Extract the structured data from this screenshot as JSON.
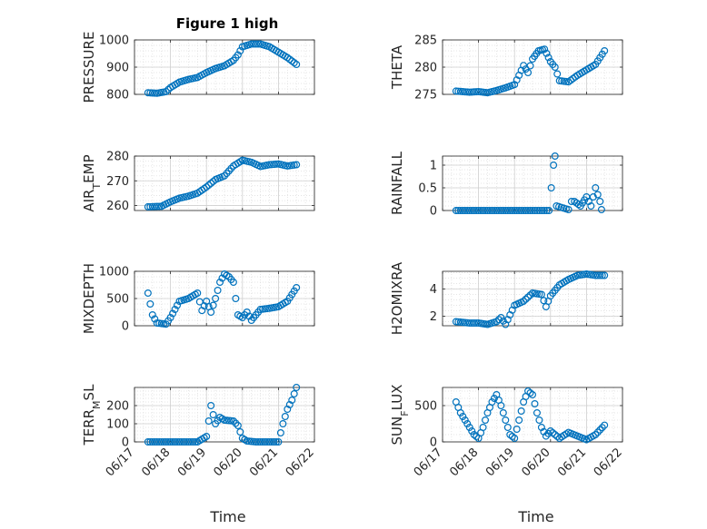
{
  "figure": {
    "title": "Figure 1 high"
  },
  "colors": {
    "marker": "#0072BD",
    "axes": "#262626",
    "grid": "#dcdcdc"
  },
  "chart_data": [
    {
      "id": "pressure",
      "type": "scatter",
      "title": "Figure 1 high",
      "ylabel": "PRESSURE",
      "ylabel_base": "PRESSURE",
      "ylabel_sub": "",
      "ylabel_tail": "",
      "ylim": [
        800,
        1000
      ],
      "yticks": [
        800,
        900,
        1000
      ],
      "ytick_labels": [
        "800",
        "900",
        "1000"
      ],
      "xlim": [
        "06/17",
        "06/22"
      ],
      "xticks": [],
      "xlabel": "",
      "grid": true,
      "points": [
        [
          "06/17 09:00",
          806
        ],
        [
          "06/17 15:00",
          804
        ],
        [
          "06/17 21:00",
          810
        ],
        [
          "06/18 00:00",
          825
        ],
        [
          "06/18 06:00",
          845
        ],
        [
          "06/18 12:00",
          855
        ],
        [
          "06/18 18:00",
          862
        ],
        [
          "06/19 00:00",
          880
        ],
        [
          "06/19 06:00",
          895
        ],
        [
          "06/19 12:00",
          905
        ],
        [
          "06/19 18:00",
          925
        ],
        [
          "06/19 21:00",
          945
        ],
        [
          "06/20 00:00",
          975
        ],
        [
          "06/20 06:00",
          985
        ],
        [
          "06/20 12:00",
          985
        ],
        [
          "06/20 18:00",
          975
        ],
        [
          "06/21 00:00",
          955
        ],
        [
          "06/21 06:00",
          935
        ],
        [
          "06/21 12:00",
          910
        ]
      ]
    },
    {
      "id": "theta",
      "type": "scatter",
      "title": "",
      "ylabel": "THETA",
      "ylabel_base": "THETA",
      "ylabel_sub": "",
      "ylabel_tail": "",
      "ylim": [
        275,
        285
      ],
      "yticks": [
        275,
        280,
        285
      ],
      "ytick_labels": [
        "275",
        "280",
        "285"
      ],
      "xlim": [
        "06/17",
        "06/22"
      ],
      "xticks": [],
      "xlabel": "",
      "grid": true,
      "points": [
        [
          "06/17 09:00",
          275.6
        ],
        [
          "06/17 18:00",
          275.4
        ],
        [
          "06/18 00:00",
          275.5
        ],
        [
          "06/18 06:00",
          275.3
        ],
        [
          "06/18 12:00",
          275.7
        ],
        [
          "06/18 18:00",
          276.2
        ],
        [
          "06/19 00:00",
          276.8
        ],
        [
          "06/19 03:00",
          278.5
        ],
        [
          "06/19 06:00",
          280.3
        ],
        [
          "06/19 09:00",
          279.0
        ],
        [
          "06/19 12:00",
          281.5
        ],
        [
          "06/19 16:00",
          283.0
        ],
        [
          "06/19 20:00",
          283.3
        ],
        [
          "06/20 00:00",
          281.0
        ],
        [
          "06/20 03:00",
          280.0
        ],
        [
          "06/20 06:00",
          277.5
        ],
        [
          "06/20 12:00",
          277.3
        ],
        [
          "06/20 18:00",
          278.5
        ],
        [
          "06/21 00:00",
          279.5
        ],
        [
          "06/21 06:00",
          280.5
        ],
        [
          "06/21 12:00",
          283.0
        ]
      ]
    },
    {
      "id": "airtemp",
      "type": "scatter",
      "title": "",
      "ylabel": "AIR_TEMP",
      "ylabel_base": "AIR",
      "ylabel_sub": "T",
      "ylabel_tail": "EMP",
      "ylim": [
        258,
        280
      ],
      "yticks": [
        260,
        270,
        280
      ],
      "ytick_labels": [
        "260",
        "270",
        "280"
      ],
      "xlim": [
        "06/17",
        "06/22"
      ],
      "xticks": [],
      "xlabel": "",
      "grid": true,
      "points": [
        [
          "06/17 09:00",
          259.5
        ],
        [
          "06/17 18:00",
          259.7
        ],
        [
          "06/18 00:00",
          261.5
        ],
        [
          "06/18 06:00",
          263
        ],
        [
          "06/18 12:00",
          263.8
        ],
        [
          "06/18 18:00",
          265
        ],
        [
          "06/19 00:00",
          267.5
        ],
        [
          "06/19 06:00",
          270.5
        ],
        [
          "06/19 12:00",
          272
        ],
        [
          "06/19 18:00",
          276
        ],
        [
          "06/20 00:00",
          278.3
        ],
        [
          "06/20 06:00",
          277.5
        ],
        [
          "06/20 12:00",
          275.8
        ],
        [
          "06/20 18:00",
          276.5
        ],
        [
          "06/21 00:00",
          276.8
        ],
        [
          "06/21 06:00",
          276
        ],
        [
          "06/21 12:00",
          276.5
        ]
      ]
    },
    {
      "id": "rainfall",
      "type": "scatter",
      "title": "",
      "ylabel": "RAINFALL",
      "ylabel_base": "RAINFALL",
      "ylabel_sub": "",
      "ylabel_tail": "",
      "ylim": [
        0,
        1.2
      ],
      "yticks": [
        0,
        0.5,
        1
      ],
      "ytick_labels": [
        "0",
        "0.5",
        "1"
      ],
      "xlim": [
        "06/17",
        "06/22"
      ],
      "xticks": [],
      "xlabel": "",
      "grid": true,
      "points": [
        [
          "06/17 09:00",
          0
        ],
        [
          "06/18 00:00",
          0
        ],
        [
          "06/18 12:00",
          0
        ],
        [
          "06/19 00:00",
          0
        ],
        [
          "06/19 12:00",
          0
        ],
        [
          "06/19 23:00",
          0
        ],
        [
          "06/20 02:00",
          1.0
        ],
        [
          "06/20 03:00",
          1.2
        ],
        [
          "06/20 04:00",
          0.1
        ],
        [
          "06/20 12:00",
          0.02
        ],
        [
          "06/20 14:00",
          0.2
        ],
        [
          "06/20 16:00",
          0.2
        ],
        [
          "06/20 20:00",
          0.1
        ],
        [
          "06/21 00:00",
          0.3
        ],
        [
          "06/21 03:00",
          0.1
        ],
        [
          "06/21 06:00",
          0.5
        ],
        [
          "06/21 09:00",
          0.2
        ],
        [
          "06/21 10:00",
          0.02
        ]
      ]
    },
    {
      "id": "mixdepth",
      "type": "scatter",
      "title": "",
      "ylabel": "MIXDEPTH",
      "ylabel_base": "MIXDEPTH",
      "ylabel_sub": "",
      "ylabel_tail": "",
      "ylim": [
        0,
        1000
      ],
      "yticks": [
        0,
        500,
        1000
      ],
      "ytick_labels": [
        "0",
        "500",
        "1000"
      ],
      "xlim": [
        "06/17",
        "06/22"
      ],
      "xticks": [],
      "xlabel": "",
      "grid": true,
      "points": [
        [
          "06/17 09:00",
          600
        ],
        [
          "06/17 12:00",
          200
        ],
        [
          "06/17 15:00",
          50
        ],
        [
          "06/17 21:00",
          30
        ],
        [
          "06/18 00:00",
          150
        ],
        [
          "06/18 03:00",
          300
        ],
        [
          "06/18 06:00",
          450
        ],
        [
          "06/18 12:00",
          500
        ],
        [
          "06/18 18:00",
          600
        ],
        [
          "06/18 21:00",
          280
        ],
        [
          "06/19 00:00",
          450
        ],
        [
          "06/19 03:00",
          250
        ],
        [
          "06/19 06:00",
          500
        ],
        [
          "06/19 09:00",
          800
        ],
        [
          "06/19 12:00",
          950
        ],
        [
          "06/19 15:00",
          900
        ],
        [
          "06/19 18:00",
          800
        ],
        [
          "06/19 21:00",
          200
        ],
        [
          "06/20 00:00",
          150
        ],
        [
          "06/20 03:00",
          250
        ],
        [
          "06/20 06:00",
          100
        ],
        [
          "06/20 12:00",
          300
        ],
        [
          "06/20 18:00",
          320
        ],
        [
          "06/21 00:00",
          350
        ],
        [
          "06/21 06:00",
          450
        ],
        [
          "06/21 12:00",
          700
        ]
      ]
    },
    {
      "id": "h2omixra",
      "type": "scatter",
      "title": "",
      "ylabel": "H2OMIXRA",
      "ylabel_base": "H2OMIXRA",
      "ylabel_sub": "",
      "ylabel_tail": "",
      "ylim": [
        1.3,
        5.3
      ],
      "yticks": [
        2,
        4
      ],
      "ytick_labels": [
        "2",
        "4"
      ],
      "xlim": [
        "06/17",
        "06/22"
      ],
      "xticks": [],
      "xlabel": "",
      "grid": true,
      "points": [
        [
          "06/17 09:00",
          1.6
        ],
        [
          "06/17 18:00",
          1.5
        ],
        [
          "06/18 00:00",
          1.5
        ],
        [
          "06/18 06:00",
          1.4
        ],
        [
          "06/18 12:00",
          1.6
        ],
        [
          "06/18 15:00",
          1.9
        ],
        [
          "06/18 18:00",
          1.4
        ],
        [
          "06/19 00:00",
          2.8
        ],
        [
          "06/19 06:00",
          3.1
        ],
        [
          "06/19 12:00",
          3.7
        ],
        [
          "06/19 18:00",
          3.6
        ],
        [
          "06/19 21:00",
          2.7
        ],
        [
          "06/20 00:00",
          3.5
        ],
        [
          "06/20 06:00",
          4.3
        ],
        [
          "06/20 12:00",
          4.7
        ],
        [
          "06/20 18:00",
          5.0
        ],
        [
          "06/21 00:00",
          5.1
        ],
        [
          "06/21 06:00",
          5.0
        ],
        [
          "06/21 12:00",
          5.0
        ]
      ]
    },
    {
      "id": "terrmsl",
      "type": "scatter",
      "title": "",
      "ylabel": "TERR_MSL",
      "ylabel_base": "TERR",
      "ylabel_sub": "M",
      "ylabel_tail": "SL",
      "ylim": [
        0,
        300
      ],
      "yticks": [
        0,
        100,
        200
      ],
      "ytick_labels": [
        "0",
        "100",
        "200"
      ],
      "xlim": [
        "06/17",
        "06/22"
      ],
      "xticks": [
        "06/17",
        "06/18",
        "06/19",
        "06/20",
        "06/21",
        "06/22"
      ],
      "xlabel": "Time",
      "grid": true,
      "points": [
        [
          "06/17 09:00",
          0
        ],
        [
          "06/17 18:00",
          0
        ],
        [
          "06/18 06:00",
          0
        ],
        [
          "06/18 18:00",
          0
        ],
        [
          "06/19 00:00",
          30
        ],
        [
          "06/19 03:00",
          200
        ],
        [
          "06/19 06:00",
          100
        ],
        [
          "06/19 09:00",
          135
        ],
        [
          "06/19 12:00",
          120
        ],
        [
          "06/19 18:00",
          115
        ],
        [
          "06/19 21:00",
          90
        ],
        [
          "06/20 00:00",
          20
        ],
        [
          "06/20 03:00",
          5
        ],
        [
          "06/20 09:00",
          0
        ],
        [
          "06/20 18:00",
          0
        ],
        [
          "06/21 00:00",
          0
        ],
        [
          "06/21 03:00",
          100
        ],
        [
          "06/21 06:00",
          180
        ],
        [
          "06/21 09:00",
          230
        ],
        [
          "06/21 12:00",
          300
        ]
      ]
    },
    {
      "id": "sunflux",
      "type": "scatter",
      "title": "",
      "ylabel": "SUN_FLUX",
      "ylabel_base": "SUN",
      "ylabel_sub": "F",
      "ylabel_tail": "LUX",
      "ylim": [
        0,
        750
      ],
      "yticks": [
        0,
        500
      ],
      "ytick_labels": [
        "0",
        "500"
      ],
      "xlim": [
        "06/17",
        "06/22"
      ],
      "xticks": [
        "06/17",
        "06/18",
        "06/19",
        "06/20",
        "06/21",
        "06/22"
      ],
      "xlabel": "Time",
      "grid": true,
      "points": [
        [
          "06/17 09:00",
          550
        ],
        [
          "06/17 12:00",
          400
        ],
        [
          "06/17 15:00",
          300
        ],
        [
          "06/17 21:00",
          100
        ],
        [
          "06/18 00:00",
          50
        ],
        [
          "06/18 03:00",
          200
        ],
        [
          "06/18 06:00",
          400
        ],
        [
          "06/18 09:00",
          550
        ],
        [
          "06/18 12:00",
          650
        ],
        [
          "06/18 15:00",
          500
        ],
        [
          "06/18 18:00",
          300
        ],
        [
          "06/18 21:00",
          100
        ],
        [
          "06/19 00:00",
          50
        ],
        [
          "06/19 03:00",
          300
        ],
        [
          "06/19 06:00",
          550
        ],
        [
          "06/19 09:00",
          700
        ],
        [
          "06/19 12:00",
          650
        ],
        [
          "06/19 15:00",
          400
        ],
        [
          "06/19 18:00",
          200
        ],
        [
          "06/19 21:00",
          80
        ],
        [
          "06/20 00:00",
          150
        ],
        [
          "06/20 03:00",
          100
        ],
        [
          "06/20 06:00",
          50
        ],
        [
          "06/20 12:00",
          130
        ],
        [
          "06/20 18:00",
          80
        ],
        [
          "06/21 00:00",
          30
        ],
        [
          "06/21 06:00",
          100
        ],
        [
          "06/21 12:00",
          230
        ]
      ]
    }
  ]
}
